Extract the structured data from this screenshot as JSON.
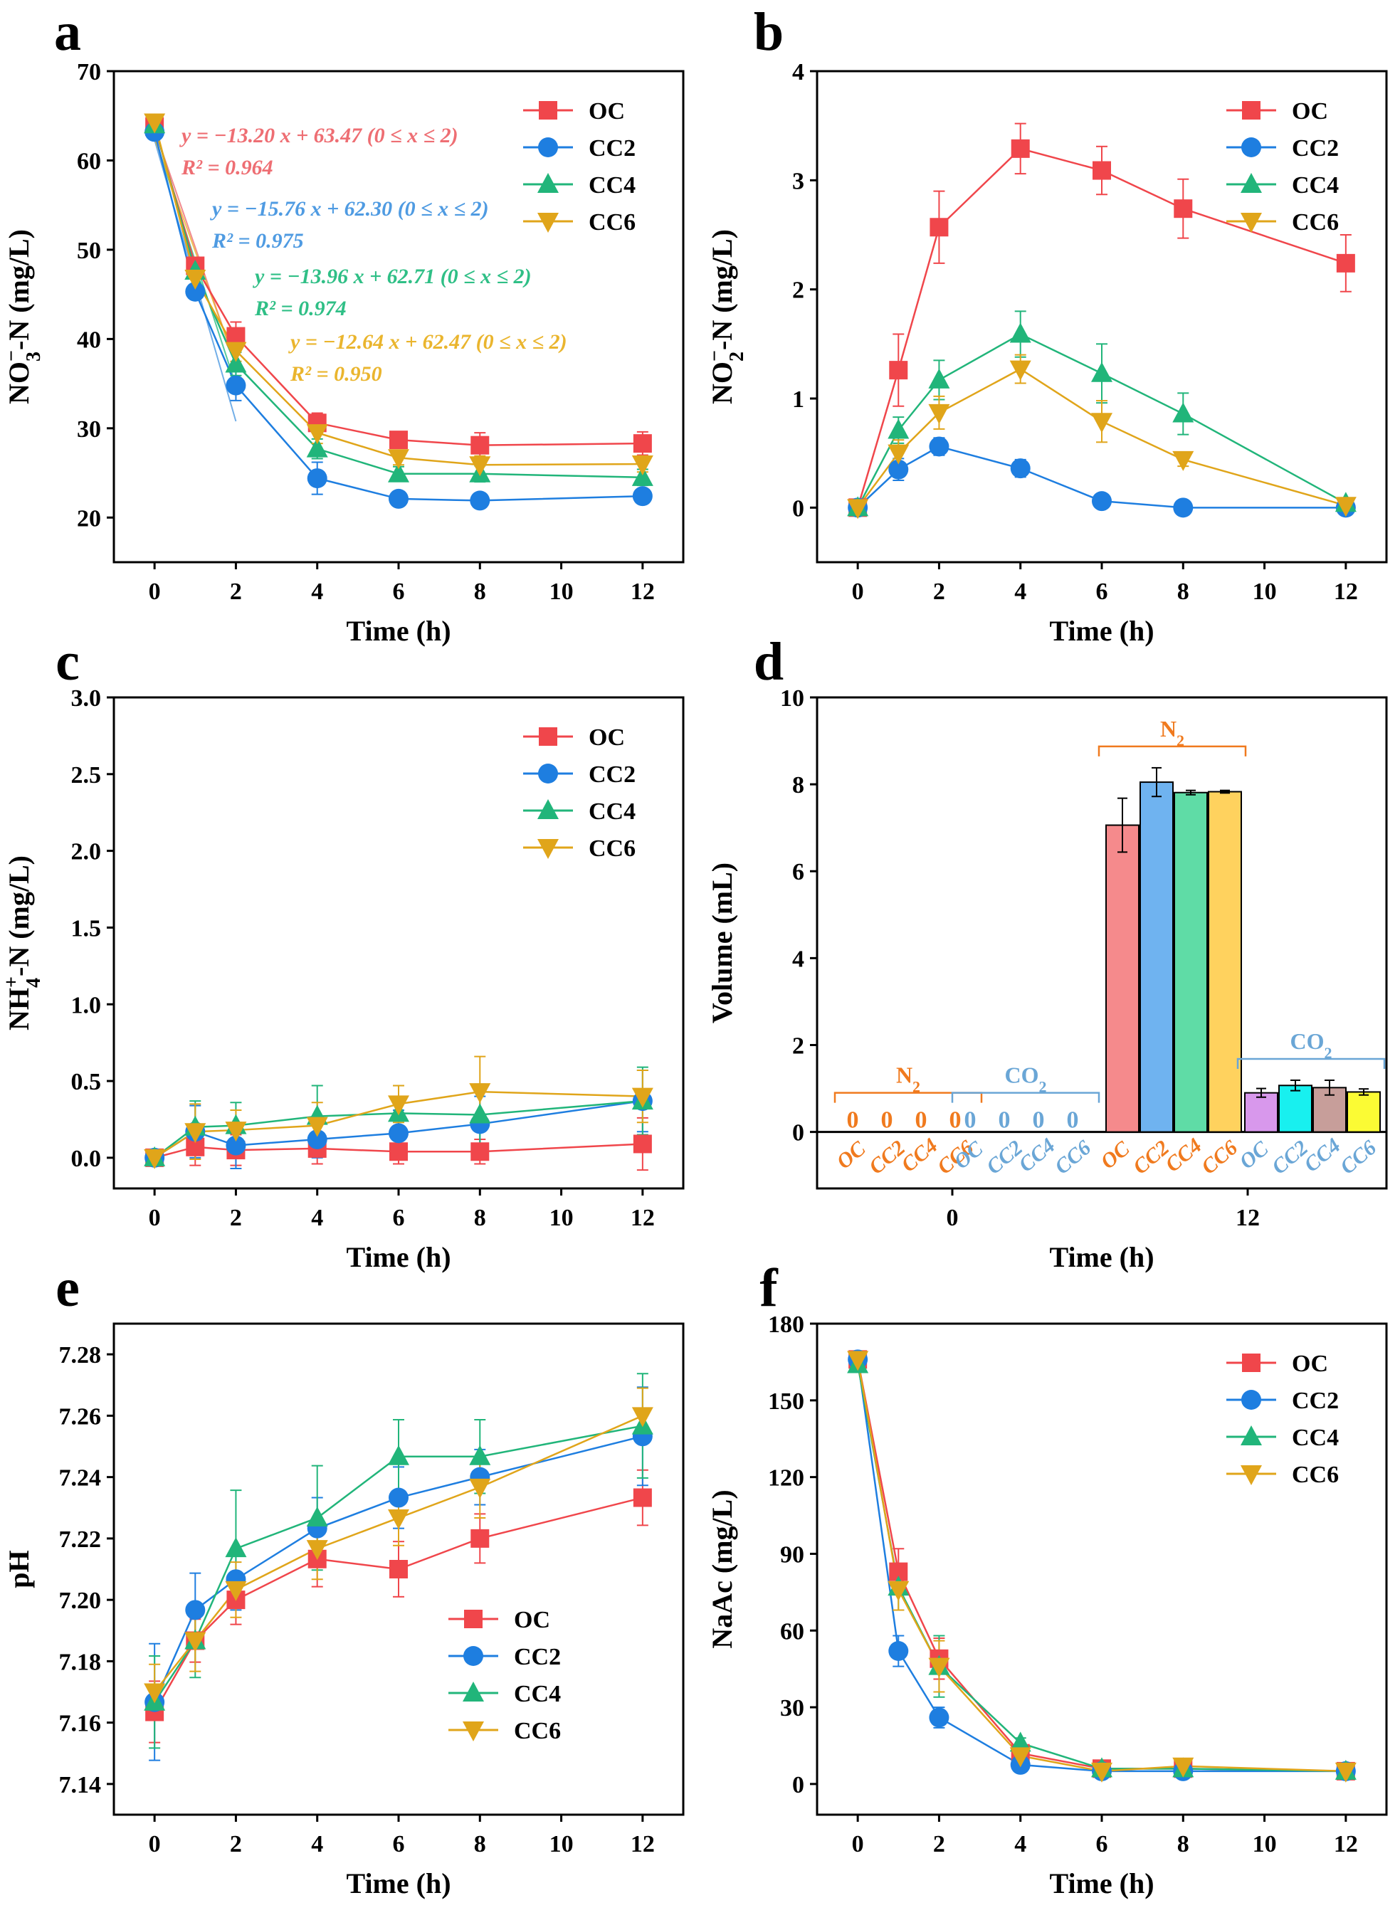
{
  "figure": {
    "panels": [
      "a",
      "b",
      "c",
      "d",
      "e",
      "f"
    ]
  },
  "colors": {
    "OC": "#f0464b",
    "CC2": "#1e7ee0",
    "CC4": "#21b57a",
    "CC6": "#e0a51a",
    "eq_OC": "#ee6e73",
    "eq_CC2": "#4f9be2",
    "eq_CC4": "#2fbf86",
    "eq_CC6": "#eab52e",
    "N2_label": "#f07a1e",
    "CO2_label": "#6aa6d6",
    "bar_N2": [
      "#f58a8c",
      "#6fb3f0",
      "#5fdca6",
      "#ffd25e"
    ],
    "bar_CO2": [
      "#d898ec",
      "#18f0ef",
      "#c79e9a",
      "#fbfb34"
    ]
  },
  "chart_data": [
    {
      "id": "a",
      "type": "line",
      "title": "",
      "xlabel": "Time (h)",
      "ylabel_main": "NO",
      "ylabel_sub": "3",
      "ylabel_sup": "−",
      "ylabel_tail": "-N (mg/L)",
      "xlim": [
        -1,
        13
      ],
      "ylim": [
        15,
        70
      ],
      "xticks": [
        0,
        2,
        4,
        6,
        8,
        10,
        12
      ],
      "yticks": [
        20,
        30,
        40,
        50,
        60,
        70
      ],
      "legend": "top-right",
      "x": [
        0,
        1,
        2,
        4,
        6,
        8,
        12
      ],
      "series": [
        {
          "name": "OC",
          "marker": "square",
          "values": [
            63.8,
            48.2,
            40.3,
            30.6,
            28.7,
            28.1,
            28.3
          ],
          "err": [
            0.6,
            0.9,
            1.6,
            1.1,
            0.9,
            1.4,
            1.3
          ]
        },
        {
          "name": "CC2",
          "marker": "circle",
          "values": [
            63.2,
            45.3,
            34.8,
            24.4,
            22.1,
            21.9,
            22.4
          ],
          "err": [
            0.5,
            0.8,
            1.7,
            1.8,
            0.6,
            0.4,
            0.6
          ]
        },
        {
          "name": "CC4",
          "marker": "triangle-up",
          "values": [
            64.0,
            47.6,
            37.2,
            27.7,
            24.9,
            24.9,
            24.5
          ],
          "err": [
            0.5,
            0.8,
            1.3,
            1.1,
            0.8,
            0.9,
            0.9
          ]
        },
        {
          "name": "CC6",
          "marker": "triangle-down",
          "values": [
            64.3,
            46.8,
            38.7,
            29.5,
            26.7,
            25.9,
            26.0
          ],
          "err": [
            0.5,
            1.0,
            1.2,
            1.2,
            0.8,
            1.0,
            0.9
          ]
        }
      ],
      "fits": [
        {
          "name": "OC",
          "text": "y = −13.20 x + 63.47 (0 ≤ x ≤ 2)",
          "r2": "R² = 0.964",
          "slope": -13.2,
          "intercept": 63.47
        },
        {
          "name": "CC2",
          "text": "y = −15.76 x + 62.30 (0 ≤ x ≤ 2)",
          "r2": "R² = 0.975",
          "slope": -15.76,
          "intercept": 62.3
        },
        {
          "name": "CC4",
          "text": "y = −13.96 x + 62.71 (0 ≤ x ≤ 2)",
          "r2": "R² = 0.974",
          "slope": -13.96,
          "intercept": 62.71
        },
        {
          "name": "CC6",
          "text": "y = −12.64 x + 62.47 (0 ≤ x ≤ 2)",
          "r2": "R² = 0.950",
          "slope": -12.64,
          "intercept": 62.47
        }
      ]
    },
    {
      "id": "b",
      "type": "line",
      "xlabel": "Time (h)",
      "ylabel_main": "NO",
      "ylabel_sub": "2",
      "ylabel_sup": "−",
      "ylabel_tail": "-N (mg/L)",
      "xlim": [
        -1,
        13
      ],
      "ylim": [
        -0.5,
        4
      ],
      "xticks": [
        0,
        2,
        4,
        6,
        8,
        10,
        12
      ],
      "yticks": [
        0,
        1,
        2,
        3,
        4
      ],
      "legend": "top-right",
      "x": [
        0,
        1,
        2,
        4,
        6,
        8,
        12
      ],
      "series": [
        {
          "name": "OC",
          "marker": "square",
          "values": [
            0.0,
            1.26,
            2.57,
            3.29,
            3.09,
            2.74,
            2.24
          ],
          "err": [
            0.03,
            0.33,
            0.33,
            0.23,
            0.22,
            0.27,
            0.26
          ]
        },
        {
          "name": "CC2",
          "marker": "circle",
          "values": [
            0.0,
            0.35,
            0.56,
            0.36,
            0.06,
            0.0,
            0.0
          ],
          "err": [
            0.03,
            0.1,
            0.08,
            0.08,
            0.03,
            0.02,
            0.02
          ]
        },
        {
          "name": "CC4",
          "marker": "triangle-up",
          "values": [
            0.0,
            0.71,
            1.17,
            1.59,
            1.23,
            0.86,
            0.04
          ],
          "err": [
            0.03,
            0.12,
            0.18,
            0.21,
            0.27,
            0.19,
            0.04
          ]
        },
        {
          "name": "CC6",
          "marker": "triangle-down",
          "values": [
            0.0,
            0.5,
            0.87,
            1.27,
            0.79,
            0.44,
            0.02
          ],
          "err": [
            0.03,
            0.12,
            0.15,
            0.13,
            0.19,
            0.06,
            0.03
          ]
        }
      ]
    },
    {
      "id": "c",
      "type": "line",
      "xlabel": "Time (h)",
      "ylabel_main": "NH",
      "ylabel_sub": "4",
      "ylabel_sup": "+",
      "ylabel_tail": "-N (mg/L)",
      "xlim": [
        -1,
        13
      ],
      "ylim": [
        -0.2,
        3.0
      ],
      "xticks": [
        0,
        2,
        4,
        6,
        8,
        10,
        12
      ],
      "yticks": [
        "0.0",
        "0.5",
        "1.0",
        "1.5",
        "2.0",
        "2.5",
        "3.0"
      ],
      "legend": "top-right",
      "x": [
        0,
        1,
        2,
        4,
        6,
        8,
        12
      ],
      "series": [
        {
          "name": "OC",
          "marker": "square",
          "values": [
            0.0,
            0.07,
            0.05,
            0.06,
            0.04,
            0.04,
            0.09
          ],
          "err": [
            0.03,
            0.12,
            0.1,
            0.1,
            0.08,
            0.08,
            0.17
          ]
        },
        {
          "name": "CC2",
          "marker": "circle",
          "values": [
            0.0,
            0.17,
            0.08,
            0.12,
            0.16,
            0.22,
            0.37
          ],
          "err": [
            0.03,
            0.17,
            0.15,
            0.12,
            0.15,
            0.18,
            0.2
          ]
        },
        {
          "name": "CC4",
          "marker": "triangle-up",
          "values": [
            0.0,
            0.2,
            0.21,
            0.27,
            0.29,
            0.28,
            0.37
          ],
          "err": [
            0.03,
            0.17,
            0.15,
            0.2,
            0.18,
            0.2,
            0.22
          ]
        },
        {
          "name": "CC6",
          "marker": "triangle-down",
          "values": [
            0.0,
            0.17,
            0.18,
            0.21,
            0.35,
            0.43,
            0.4
          ],
          "err": [
            0.03,
            0.18,
            0.13,
            0.15,
            0.12,
            0.23,
            0.17
          ]
        }
      ]
    },
    {
      "id": "d",
      "type": "bar",
      "xlabel": "Time (h)",
      "ylabel": "Volume (mL)",
      "ylim": [
        -1.3,
        10
      ],
      "yticks": [
        0,
        2,
        4,
        6,
        8,
        10
      ],
      "time_labels": [
        "0",
        "12"
      ],
      "categories": [
        "OC",
        "CC2",
        "CC4",
        "CC6"
      ],
      "groups": [
        {
          "time": "0",
          "gas": "N2",
          "gas_text": "N",
          "gas_sub": "2",
          "values": [
            0,
            0,
            0,
            0
          ],
          "err": [
            0,
            0,
            0,
            0
          ]
        },
        {
          "time": "0",
          "gas": "CO2",
          "gas_text": "CO",
          "gas_sub": "2",
          "values": [
            0,
            0,
            0,
            0
          ],
          "err": [
            0,
            0,
            0,
            0
          ]
        },
        {
          "time": "12",
          "gas": "N2",
          "gas_text": "N",
          "gas_sub": "2",
          "values": [
            7.06,
            8.05,
            7.81,
            7.83
          ],
          "err": [
            0.62,
            0.33,
            0.05,
            0.03
          ]
        },
        {
          "time": "12",
          "gas": "CO2",
          "gas_text": "CO",
          "gas_sub": "2",
          "values": [
            0.9,
            1.07,
            1.02,
            0.92
          ],
          "err": [
            0.1,
            0.12,
            0.17,
            0.07
          ]
        }
      ],
      "zero_labels": [
        "0",
        "0",
        "0",
        "0"
      ]
    },
    {
      "id": "e",
      "type": "line",
      "xlabel": "Time (h)",
      "ylabel": "pH",
      "xlim": [
        -1,
        13
      ],
      "ylim": [
        7.13,
        7.29
      ],
      "xticks": [
        0,
        2,
        4,
        6,
        8,
        10,
        12
      ],
      "yticks": [
        "7.14",
        "7.16",
        "7.18",
        "7.20",
        "7.22",
        "7.24",
        "7.26",
        "7.28"
      ],
      "legend": "bottom-right",
      "x": [
        0,
        1,
        2,
        4,
        6,
        8,
        12
      ],
      "series": [
        {
          "name": "OC",
          "marker": "square",
          "values": [
            7.1635,
            7.1867,
            7.2,
            7.2133,
            7.21,
            7.22,
            7.2333
          ],
          "err": [
            0.01,
            0.007,
            0.008,
            0.009,
            0.009,
            0.008,
            0.009
          ]
        },
        {
          "name": "CC2",
          "marker": "circle",
          "values": [
            7.1667,
            7.1967,
            7.2067,
            7.2233,
            7.2333,
            7.24,
            7.2533
          ],
          "err": [
            0.019,
            0.012,
            0.01,
            0.01,
            0.01,
            0.009,
            0.016
          ]
        },
        {
          "name": "CC4",
          "marker": "triangle-up",
          "values": [
            7.1667,
            7.1867,
            7.2167,
            7.2267,
            7.2467,
            7.2467,
            7.2567
          ],
          "err": [
            0.015,
            0.012,
            0.019,
            0.017,
            0.012,
            0.012,
            0.017
          ]
        },
        {
          "name": "CC6",
          "marker": "triangle-down",
          "values": [
            7.17,
            7.1867,
            7.2033,
            7.2167,
            7.2267,
            7.2367,
            7.26
          ],
          "err": [
            0.009,
            0.01,
            0.009,
            0.01,
            0.009,
            0.01,
            0.009
          ]
        }
      ]
    },
    {
      "id": "f",
      "type": "line",
      "xlabel": "Time (h)",
      "ylabel": "NaAc (mg/L)",
      "xlim": [
        -1,
        13
      ],
      "ylim": [
        -12,
        180
      ],
      "xticks": [
        0,
        2,
        4,
        6,
        8,
        10,
        12
      ],
      "yticks": [
        0,
        30,
        60,
        90,
        120,
        150,
        180
      ],
      "legend": "top-right",
      "x": [
        0,
        1,
        2,
        4,
        6,
        8,
        12
      ],
      "series": [
        {
          "name": "OC",
          "marker": "square",
          "values": [
            166,
            83,
            49,
            12,
            6,
            6,
            5
          ],
          "err": [
            2,
            9,
            8,
            2,
            1,
            1,
            1
          ]
        },
        {
          "name": "CC2",
          "marker": "circle",
          "values": [
            166,
            52,
            26,
            7.5,
            5,
            5,
            5
          ],
          "err": [
            2,
            6,
            4,
            1,
            1,
            1,
            1
          ]
        },
        {
          "name": "CC4",
          "marker": "triangle-up",
          "values": [
            164,
            77,
            46,
            16,
            6,
            6,
            5
          ],
          "err": [
            2,
            9,
            12,
            2,
            1,
            1,
            1
          ]
        },
        {
          "name": "CC6",
          "marker": "triangle-down",
          "values": [
            166,
            76,
            46,
            11,
            5,
            7,
            5
          ],
          "err": [
            2,
            8,
            10,
            2,
            1,
            1,
            1
          ]
        }
      ]
    }
  ]
}
